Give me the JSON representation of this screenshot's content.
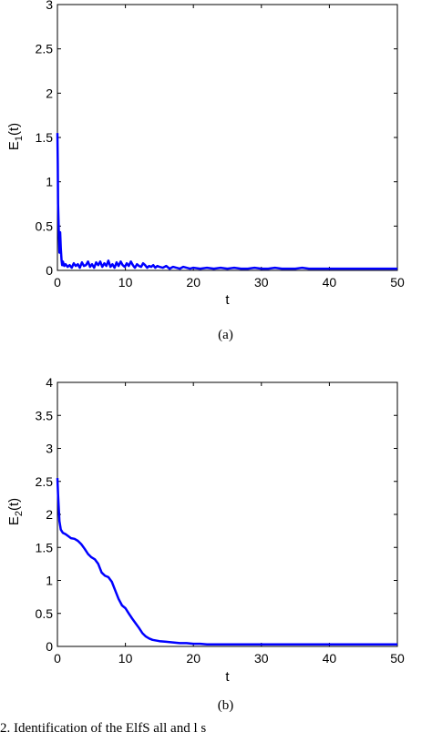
{
  "chart_data": [
    {
      "type": "line",
      "caption": "(a)",
      "xlabel": "t",
      "ylabel": "E",
      "ylabel_sub": "1",
      "ylabel_suffix": "(t)",
      "xlim": [
        0,
        50
      ],
      "ylim": [
        0,
        3
      ],
      "xticks": [
        "0",
        "10",
        "20",
        "30",
        "40",
        "50"
      ],
      "yticks": [
        "0",
        "0.5",
        "1",
        "1.5",
        "2",
        "2.5",
        "3"
      ],
      "color": "#0000ff",
      "series": [
        {
          "x": [
            0,
            0.05,
            0.1,
            0.2,
            0.3,
            0.4,
            0.5,
            0.6,
            0.7,
            0.8,
            1.0,
            1.2,
            1.5,
            1.8,
            2.1,
            2.4,
            2.7,
            3.0,
            3.3,
            3.6,
            3.9,
            4.2,
            4.5,
            4.8,
            5.1,
            5.4,
            5.7,
            6.0,
            6.3,
            6.6,
            6.9,
            7.2,
            7.5,
            7.8,
            8.1,
            8.4,
            8.7,
            9.0,
            9.3,
            9.6,
            9.9,
            10.2,
            10.5,
            10.8,
            11.1,
            11.4,
            11.7,
            12.0,
            12.3,
            12.6,
            12.9,
            13.2,
            13.5,
            13.8,
            14.1,
            14.4,
            14.7,
            15.0,
            15.5,
            16.0,
            16.5,
            17.0,
            17.5,
            18.0,
            18.5,
            19.0,
            19.5,
            20.0,
            21.0,
            22.0,
            23.0,
            24.0,
            25.0,
            26.0,
            27.0,
            28.0,
            29.0,
            30.0,
            31.0,
            32.0,
            33.0,
            34.0,
            35.0,
            36.0,
            37.0,
            38.0,
            40.0,
            42.0,
            44.0,
            46.0,
            48.0,
            50.0
          ],
          "values": [
            1.55,
            1.2,
            0.75,
            0.45,
            0.2,
            0.43,
            0.25,
            0.12,
            0.06,
            0.1,
            0.05,
            0.07,
            0.04,
            0.06,
            0.03,
            0.08,
            0.05,
            0.07,
            0.03,
            0.09,
            0.05,
            0.06,
            0.1,
            0.04,
            0.07,
            0.03,
            0.09,
            0.06,
            0.1,
            0.04,
            0.08,
            0.05,
            0.11,
            0.04,
            0.07,
            0.03,
            0.09,
            0.05,
            0.1,
            0.06,
            0.04,
            0.08,
            0.05,
            0.1,
            0.06,
            0.03,
            0.07,
            0.05,
            0.04,
            0.08,
            0.06,
            0.03,
            0.05,
            0.04,
            0.06,
            0.03,
            0.05,
            0.04,
            0.03,
            0.05,
            0.02,
            0.04,
            0.03,
            0.02,
            0.04,
            0.03,
            0.02,
            0.03,
            0.02,
            0.03,
            0.02,
            0.03,
            0.02,
            0.03,
            0.02,
            0.02,
            0.03,
            0.02,
            0.02,
            0.03,
            0.02,
            0.02,
            0.02,
            0.03,
            0.02,
            0.02,
            0.02,
            0.02,
            0.02,
            0.02,
            0.02,
            0.02
          ]
        }
      ]
    },
    {
      "type": "line",
      "caption": "(b)",
      "xlabel": "t",
      "ylabel": "E",
      "ylabel_sub": "2",
      "ylabel_suffix": "(t)",
      "xlim": [
        0,
        50
      ],
      "ylim": [
        0,
        4
      ],
      "xticks": [
        "0",
        "10",
        "20",
        "30",
        "40",
        "50"
      ],
      "yticks": [
        "0",
        "0.5",
        "1",
        "1.5",
        "2",
        "2.5",
        "3",
        "3.5",
        "4"
      ],
      "color": "#0000ff",
      "series": [
        {
          "x": [
            0,
            0.1,
            0.3,
            0.5,
            0.8,
            1.2,
            1.6,
            2.0,
            2.5,
            3.0,
            3.5,
            4.0,
            4.5,
            5.0,
            5.5,
            6.0,
            6.5,
            7.0,
            7.5,
            8.0,
            8.5,
            9.0,
            9.5,
            10.0,
            10.5,
            11.0,
            11.5,
            12.0,
            12.5,
            13.0,
            13.5,
            14.0,
            15.0,
            16.0,
            17.0,
            18.0,
            19.0,
            20.0,
            21.0,
            22.0,
            24.0,
            26.0,
            30.0,
            35.0,
            40.0,
            45.0,
            50.0
          ],
          "values": [
            2.55,
            2.3,
            1.9,
            1.77,
            1.72,
            1.7,
            1.67,
            1.64,
            1.63,
            1.6,
            1.55,
            1.48,
            1.4,
            1.35,
            1.32,
            1.25,
            1.12,
            1.07,
            1.05,
            0.98,
            0.85,
            0.72,
            0.62,
            0.58,
            0.5,
            0.42,
            0.35,
            0.28,
            0.2,
            0.15,
            0.12,
            0.1,
            0.08,
            0.07,
            0.06,
            0.05,
            0.05,
            0.04,
            0.04,
            0.03,
            0.03,
            0.03,
            0.03,
            0.03,
            0.03,
            0.03,
            0.03
          ]
        }
      ]
    }
  ],
  "bottom_text": "2.   Identification of the ElfS   all   and   l   s"
}
